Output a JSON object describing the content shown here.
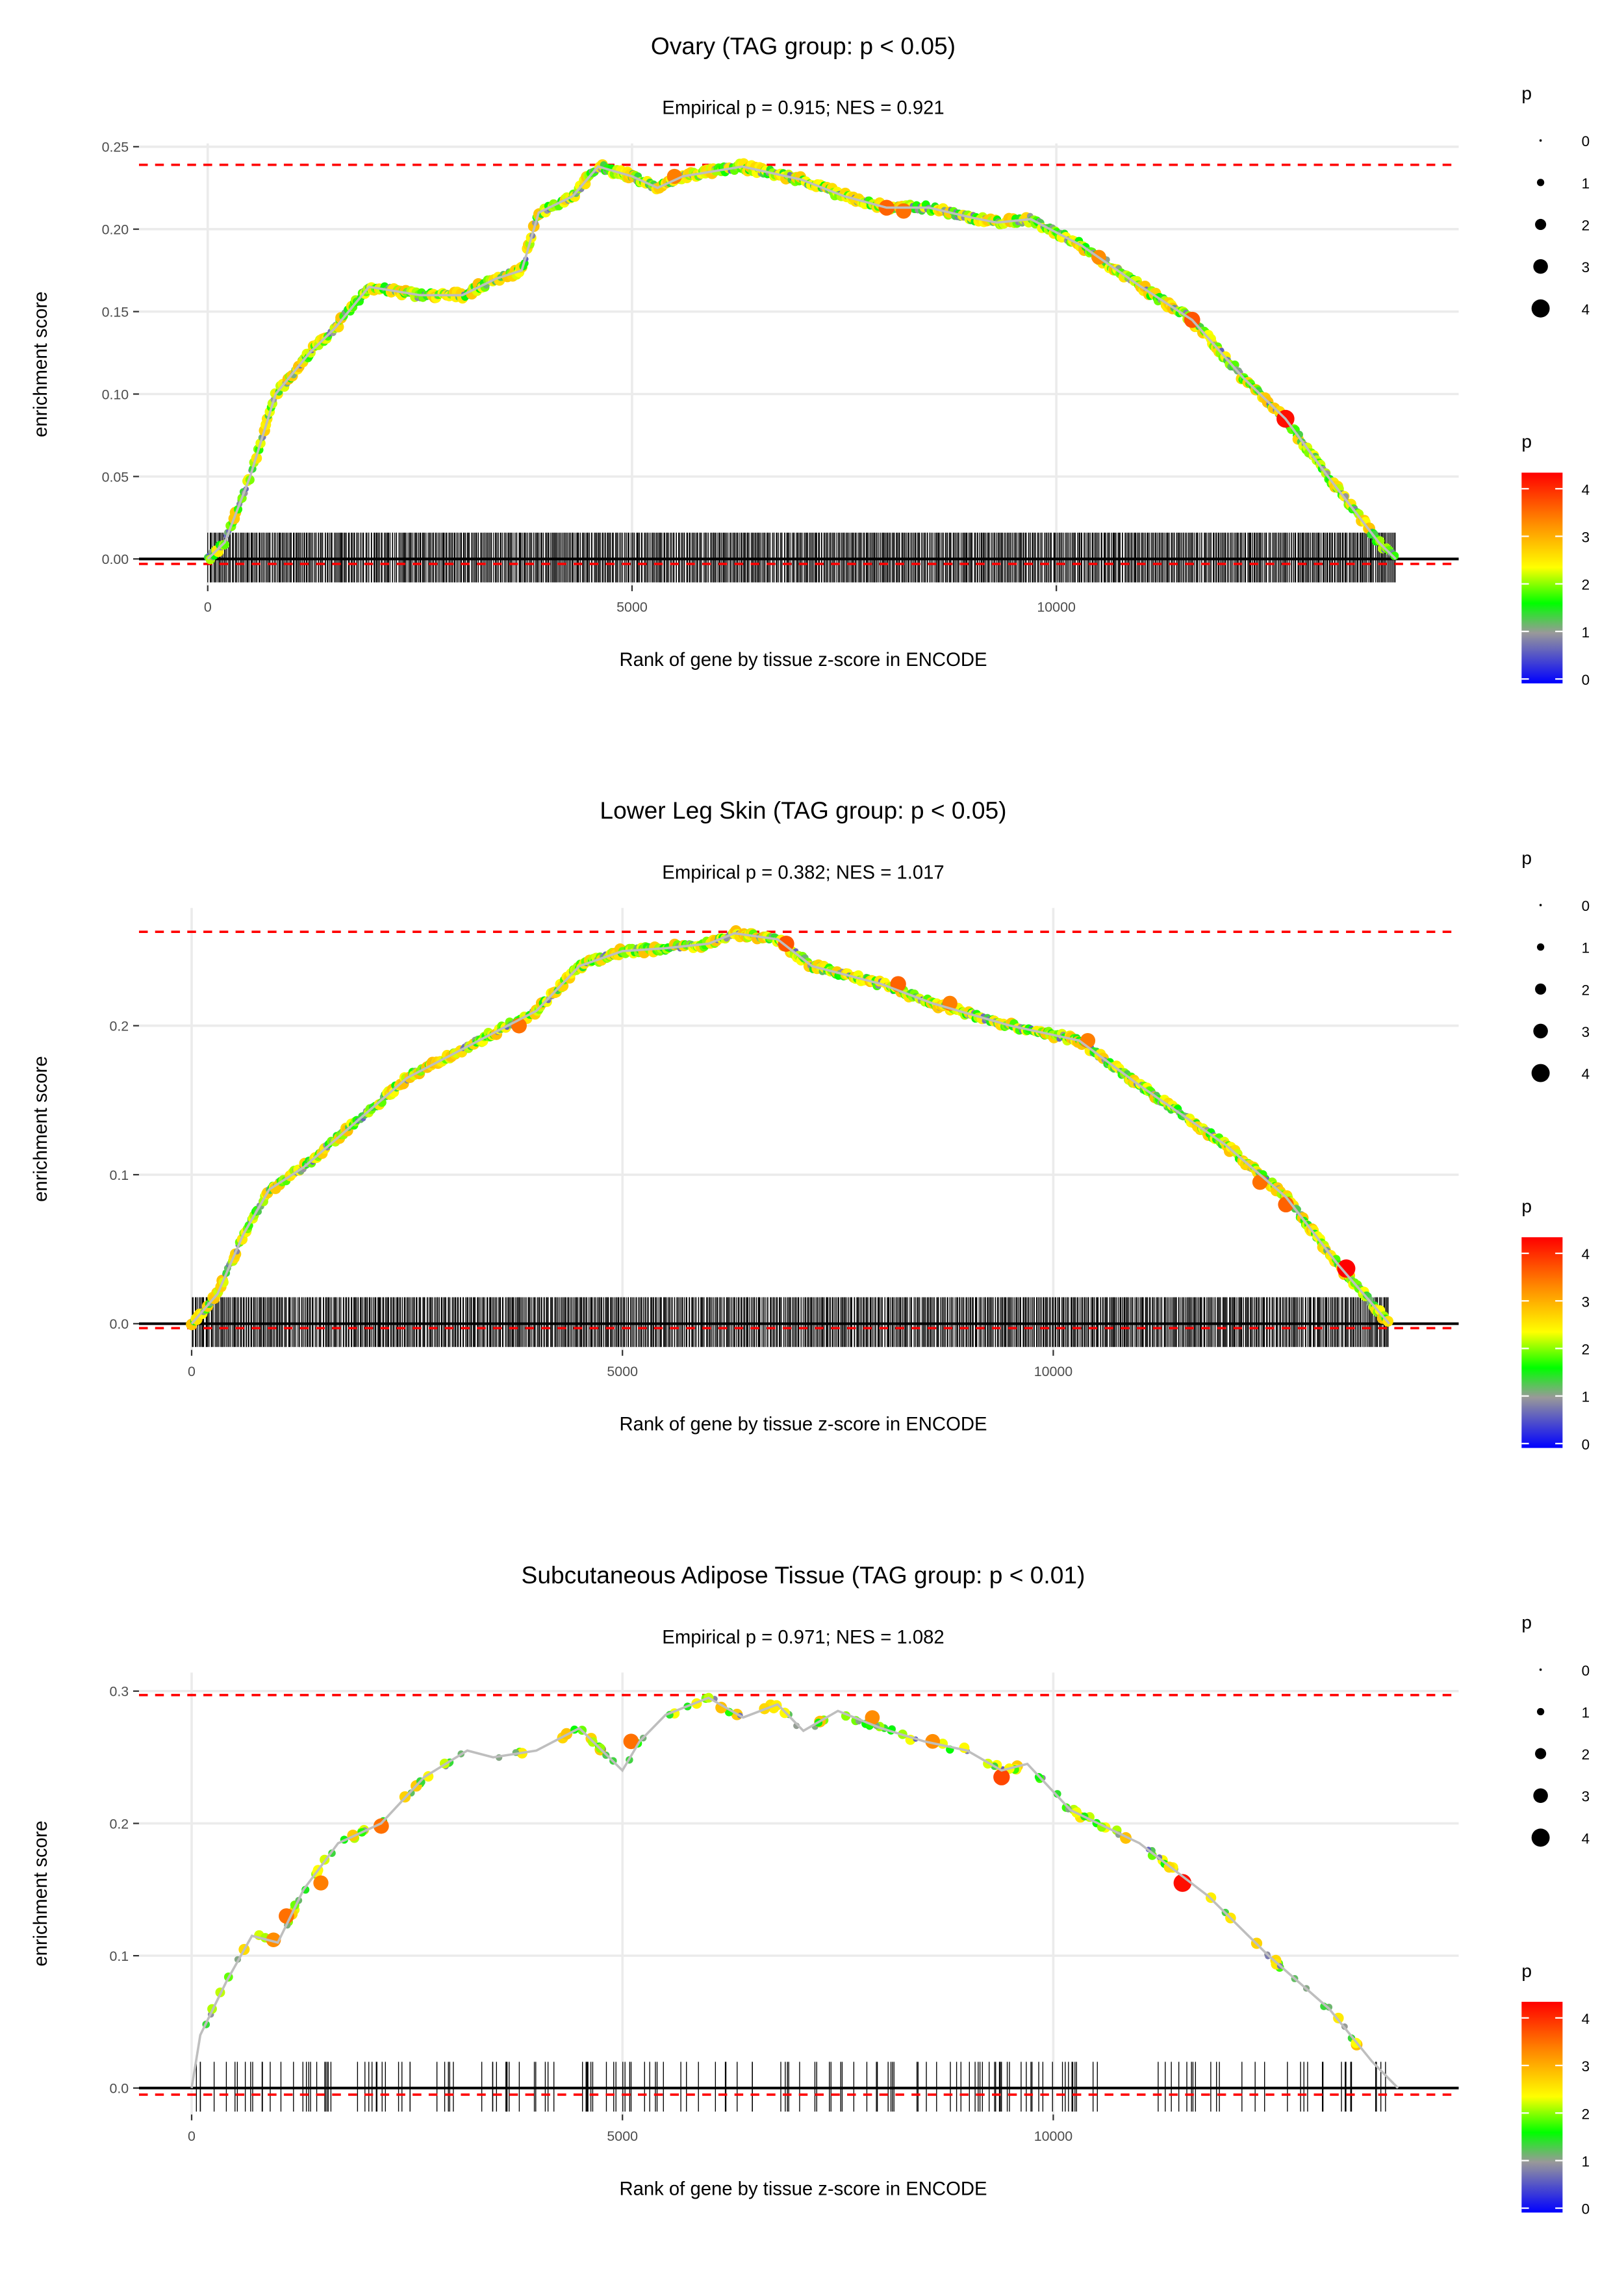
{
  "chart_data": [
    {
      "type": "scatter",
      "title": "Ovary (TAG group: p < 0.05)",
      "subtitle": "Empirical p = 0.915; NES = 0.921",
      "xlabel": "Rank of gene by tissue z-score in ENCODE",
      "ylabel": "enrichment score",
      "xlim": [
        -810,
        14741
      ],
      "ylim": [
        -0.016,
        0.252
      ],
      "xticks": [
        0,
        5000,
        10000
      ],
      "xtick_labels": [
        "0",
        "5000",
        "10000"
      ],
      "yticks": [
        0,
        0.05,
        0.1,
        0.15,
        0.2,
        0.25
      ],
      "ytick_labels": [
        "0.00",
        "0.05",
        "0.10",
        "0.15",
        "0.20",
        "0.25"
      ],
      "max_es_line": 0.239,
      "min_es_line": -0.003,
      "rug_count": 900,
      "grid": true,
      "curve": [
        [
          0,
          0
        ],
        [
          200,
          0.01
        ],
        [
          500,
          0.05
        ],
        [
          800,
          0.1
        ],
        [
          1200,
          0.125
        ],
        [
          1500,
          0.14
        ],
        [
          1900,
          0.165
        ],
        [
          2500,
          0.16
        ],
        [
          3000,
          0.16
        ],
        [
          3400,
          0.17
        ],
        [
          3700,
          0.175
        ],
        [
          3900,
          0.21
        ],
        [
          4300,
          0.22
        ],
        [
          4600,
          0.238
        ],
        [
          5000,
          0.232
        ],
        [
          5300,
          0.225
        ],
        [
          5600,
          0.232
        ],
        [
          6300,
          0.238
        ],
        [
          7000,
          0.23
        ],
        [
          7500,
          0.22
        ],
        [
          8000,
          0.213
        ],
        [
          8500,
          0.213
        ],
        [
          9000,
          0.207
        ],
        [
          9300,
          0.204
        ],
        [
          9700,
          0.206
        ],
        [
          10300,
          0.19
        ],
        [
          11000,
          0.165
        ],
        [
          11600,
          0.145
        ],
        [
          12200,
          0.11
        ],
        [
          12700,
          0.085
        ],
        [
          13200,
          0.05
        ],
        [
          13800,
          0.01
        ],
        [
          14000,
          0
        ]
      ],
      "highlight_points": [
        [
          5500,
          0.232,
          3.3
        ],
        [
          8000,
          0.213,
          3.5
        ],
        [
          8200,
          0.211,
          3.4
        ],
        [
          10500,
          0.183,
          3.2
        ],
        [
          11600,
          0.145,
          3.6
        ],
        [
          12700,
          0.085,
          4.1
        ]
      ]
    },
    {
      "type": "scatter",
      "title": "Lower Leg Skin (TAG group: p < 0.05)",
      "subtitle": "Empirical p = 0.382; NES = 1.017",
      "xlabel": "Rank of gene by tissue z-score in ENCODE",
      "ylabel": "enrichment score",
      "xlim": [
        -611,
        14705
      ],
      "ylim": [
        -0.0176,
        0.279
      ],
      "xticks": [
        0,
        5000,
        10000
      ],
      "xtick_labels": [
        "0",
        "5000",
        "10000"
      ],
      "yticks": [
        0,
        0.1,
        0.2
      ],
      "ytick_labels": [
        "0.0",
        "0.1",
        "0.2"
      ],
      "max_es_line": 0.263,
      "min_es_line": -0.003,
      "rug_count": 900,
      "grid": true,
      "curve": [
        [
          0,
          0
        ],
        [
          300,
          0.02
        ],
        [
          600,
          0.06
        ],
        [
          900,
          0.09
        ],
        [
          1300,
          0.105
        ],
        [
          2000,
          0.14
        ],
        [
          2500,
          0.165
        ],
        [
          3000,
          0.18
        ],
        [
          3500,
          0.195
        ],
        [
          4000,
          0.21
        ],
        [
          4500,
          0.24
        ],
        [
          5000,
          0.25
        ],
        [
          5500,
          0.252
        ],
        [
          6000,
          0.255
        ],
        [
          6300,
          0.262
        ],
        [
          6800,
          0.258
        ],
        [
          7200,
          0.24
        ],
        [
          8000,
          0.228
        ],
        [
          8600,
          0.215
        ],
        [
          9500,
          0.2
        ],
        [
          10300,
          0.19
        ],
        [
          11000,
          0.16
        ],
        [
          12000,
          0.12
        ],
        [
          12700,
          0.085
        ],
        [
          13300,
          0.04
        ],
        [
          13900,
          0
        ]
      ],
      "highlight_points": [
        [
          3800,
          0.2,
          3.4
        ],
        [
          6900,
          0.255,
          3.6
        ],
        [
          8200,
          0.228,
          3.5
        ],
        [
          8800,
          0.215,
          3.3
        ],
        [
          10400,
          0.19,
          3.3
        ],
        [
          12400,
          0.095,
          3.4
        ],
        [
          12700,
          0.08,
          3.5
        ],
        [
          13400,
          0.037,
          4.2
        ]
      ]
    },
    {
      "type": "scatter",
      "title": "Subcutaneous Adipose Tissue (TAG group: p < 0.01)",
      "subtitle": "Empirical p = 0.971; NES = 1.082",
      "xlabel": "Rank of gene by tissue z-score in ENCODE",
      "ylabel": "enrichment score",
      "xlim": [
        -611,
        14705
      ],
      "ylim": [
        -0.02,
        0.314
      ],
      "xticks": [
        0,
        5000,
        10000
      ],
      "xtick_labels": [
        "0",
        "5000",
        "10000"
      ],
      "yticks": [
        0,
        0.1,
        0.2,
        0.3
      ],
      "ytick_labels": [
        "0.0",
        "0.1",
        "0.2",
        "0.3"
      ],
      "max_es_line": 0.297,
      "min_es_line": -0.005,
      "rug_count": 170,
      "grid": true,
      "curve": [
        [
          0,
          0
        ],
        [
          100,
          0.04
        ],
        [
          400,
          0.08
        ],
        [
          700,
          0.115
        ],
        [
          1000,
          0.11
        ],
        [
          1300,
          0.15
        ],
        [
          1700,
          0.185
        ],
        [
          2200,
          0.2
        ],
        [
          2700,
          0.235
        ],
        [
          3200,
          0.255
        ],
        [
          3500,
          0.25
        ],
        [
          4000,
          0.255
        ],
        [
          4500,
          0.272
        ],
        [
          5000,
          0.24
        ],
        [
          5200,
          0.262
        ],
        [
          5500,
          0.282
        ],
        [
          6000,
          0.295
        ],
        [
          6400,
          0.28
        ],
        [
          6800,
          0.29
        ],
        [
          7100,
          0.27
        ],
        [
          7500,
          0.285
        ],
        [
          8000,
          0.272
        ],
        [
          8500,
          0.262
        ],
        [
          9000,
          0.255
        ],
        [
          9400,
          0.24
        ],
        [
          9700,
          0.245
        ],
        [
          10200,
          0.21
        ],
        [
          11000,
          0.185
        ],
        [
          11800,
          0.145
        ],
        [
          12500,
          0.1
        ],
        [
          13200,
          0.06
        ],
        [
          13700,
          0.02
        ],
        [
          14000,
          0
        ]
      ],
      "highlight_points": [
        [
          1100,
          0.13,
          3.4
        ],
        [
          950,
          0.112,
          3.2
        ],
        [
          1500,
          0.155,
          3.3
        ],
        [
          2200,
          0.198,
          3.4
        ],
        [
          5100,
          0.262,
          3.4
        ],
        [
          7900,
          0.28,
          3.2
        ],
        [
          8600,
          0.262,
          3.2
        ],
        [
          9400,
          0.235,
          3.7
        ],
        [
          11500,
          0.155,
          4.1
        ]
      ]
    }
  ],
  "legend": {
    "size_title": "p",
    "size_labels": [
      "0",
      "1",
      "2",
      "3",
      "4"
    ],
    "color_title": "p",
    "color_labels": [
      "0",
      "1",
      "2",
      "3",
      "4"
    ],
    "color_stops": [
      "#0000ff",
      "#999999",
      "#00ff00",
      "#ffff00",
      "#ff8c00",
      "#ff0000"
    ]
  },
  "colors": {
    "max_line": "#ff0000",
    "curve": "#bebebe",
    "grid": "#ebebeb"
  }
}
